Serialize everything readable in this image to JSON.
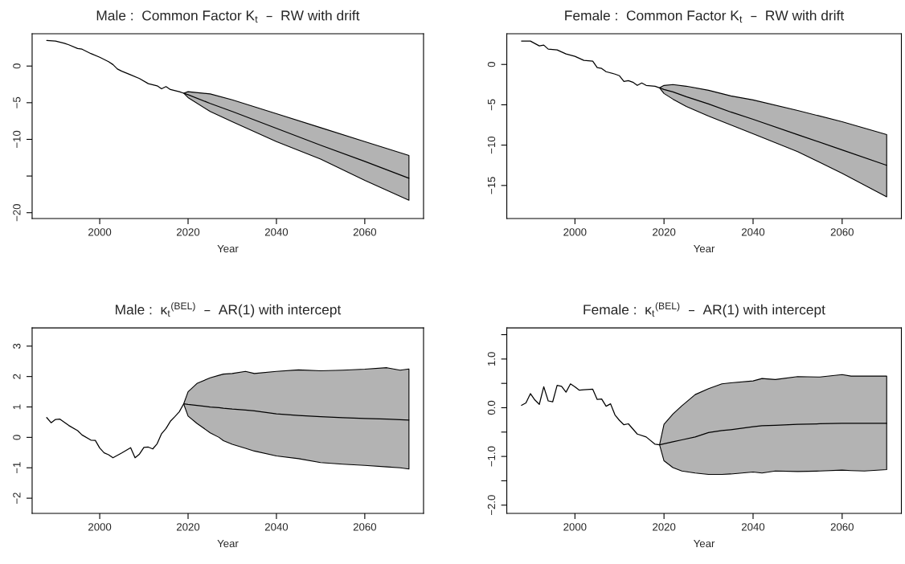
{
  "chart_data": [
    {
      "type": "line",
      "title": "Male :  Common Factor K$_{t}$  –  RW with drift",
      "xlabel": "Year",
      "xlim": [
        1984.7,
        2073.3
      ],
      "ylim": [
        -20.8,
        4.4
      ],
      "xticks": [
        2000,
        2020,
        2040,
        2060
      ],
      "yticks": [
        -20,
        {
          "value": -15,
          "label": null
        },
        -10,
        -5,
        0
      ],
      "series": [
        {
          "color": "#000000",
          "x": [
            1988,
            1990,
            1992,
            1993,
            1995,
            1996,
            1998,
            2000,
            2002,
            2003,
            2004,
            2005,
            2007,
            2009,
            2011,
            2013,
            2014,
            2015,
            2016,
            2018,
            2019,
            2020,
            2025,
            2030,
            2040,
            2050,
            2060,
            2070
          ],
          "values": [
            3.5,
            3.4,
            3.1,
            2.9,
            2.4,
            2.3,
            1.7,
            1.2,
            0.6,
            0.2,
            -0.4,
            -0.7,
            -1.2,
            -1.7,
            -2.4,
            -2.7,
            -3.1,
            -2.8,
            -3.2,
            -3.5,
            -3.7,
            -3.9,
            -5.1,
            -6.2,
            -8.5,
            -10.8,
            -13,
            -15.3
          ],
          "upper": [
            null,
            null,
            null,
            null,
            null,
            null,
            null,
            null,
            null,
            null,
            null,
            null,
            null,
            null,
            null,
            null,
            null,
            null,
            null,
            null,
            -3.7,
            -3.5,
            -3.8,
            -4.6,
            -6.5,
            -8.4,
            -10.3,
            -12.2
          ],
          "lower": [
            null,
            null,
            null,
            null,
            null,
            null,
            null,
            null,
            null,
            null,
            null,
            null,
            null,
            null,
            null,
            null,
            null,
            null,
            null,
            null,
            -3.7,
            -4.3,
            -6.2,
            -7.6,
            -10.3,
            -12.7,
            -15.6,
            -18.3
          ]
        }
      ]
    },
    {
      "type": "line",
      "title": "Female :  Common Factor K$_{t}$  –  RW with drift",
      "xlabel": "Year",
      "xlim": [
        1984.7,
        2073.3
      ],
      "ylim": [
        -19.1,
        3.8
      ],
      "xticks": [
        2000,
        2020,
        2040,
        2060
      ],
      "yticks": [
        -15,
        -10,
        -5,
        0
      ],
      "series": [
        {
          "color": "#000000",
          "x": [
            1988,
            1990,
            1992,
            1993,
            1994,
            1996,
            1998,
            2000,
            2002,
            2004,
            2005,
            2006,
            2007,
            2009,
            2010,
            2011,
            2012,
            2013,
            2014,
            2015,
            2016,
            2018,
            2019,
            2020,
            2022,
            2025,
            2030,
            2035,
            2040,
            2050,
            2060,
            2070
          ],
          "values": [
            2.9,
            2.9,
            2.3,
            2.4,
            1.9,
            1.8,
            1.3,
            1.0,
            0.5,
            0.4,
            -0.4,
            -0.5,
            -0.9,
            -1.2,
            -1.4,
            -2.1,
            -2.0,
            -2.2,
            -2.6,
            -2.3,
            -2.6,
            -2.7,
            -2.9,
            -3.1,
            -3.4,
            -4.0,
            -4.9,
            -5.9,
            -6.8,
            -8.7,
            -10.6,
            -12.5
          ],
          "upper": [
            null,
            null,
            null,
            null,
            null,
            null,
            null,
            null,
            null,
            null,
            null,
            null,
            null,
            null,
            null,
            null,
            null,
            null,
            null,
            null,
            null,
            null,
            -2.9,
            -2.6,
            -2.5,
            -2.7,
            -3.2,
            -3.9,
            -4.4,
            -5.7,
            -7.1,
            -8.7
          ],
          "lower": [
            null,
            null,
            null,
            null,
            null,
            null,
            null,
            null,
            null,
            null,
            null,
            null,
            null,
            null,
            null,
            null,
            null,
            null,
            null,
            null,
            null,
            null,
            -2.9,
            -3.6,
            -4.3,
            -5.2,
            -6.4,
            -7.5,
            -8.6,
            -10.8,
            -13.5,
            -16.4
          ]
        }
      ]
    },
    {
      "type": "line",
      "title": "Male :  κ$_{t}$$^{(BEL)}$  –  AR(1) with intercept",
      "xlabel": "Year",
      "xlim": [
        1984.7,
        2073.3
      ],
      "ylim": [
        -2.5,
        3.6
      ],
      "xticks": [
        2000,
        2020,
        2040,
        2060
      ],
      "yticks": [
        -2,
        -1,
        0,
        1,
        2,
        3
      ],
      "series": [
        {
          "color": "#000000",
          "x": [
            1988,
            1989,
            1990,
            1991,
            1993,
            1995,
            1996,
            1998,
            1999,
            2000,
            2001,
            2002,
            2003,
            2005,
            2007,
            2008,
            2009,
            2010,
            2011,
            2012,
            2013,
            2014,
            2015,
            2016,
            2017,
            2018,
            2019,
            2020,
            2022,
            2025,
            2027,
            2028,
            2030,
            2033,
            2035,
            2040,
            2045,
            2050,
            2055,
            2060,
            2065,
            2068,
            2070
          ],
          "values": [
            0.65,
            0.48,
            0.59,
            0.6,
            0.39,
            0.22,
            0.08,
            -0.09,
            -0.1,
            -0.35,
            -0.51,
            -0.57,
            -0.67,
            -0.51,
            -0.34,
            -0.67,
            -0.55,
            -0.33,
            -0.32,
            -0.38,
            -0.21,
            0.12,
            0.29,
            0.53,
            0.68,
            0.84,
            1.1,
            1.08,
            1.05,
            1.0,
            0.98,
            0.96,
            0.93,
            0.9,
            0.87,
            0.77,
            0.72,
            0.68,
            0.65,
            0.62,
            0.6,
            0.58,
            0.57
          ],
          "upper": [
            null,
            null,
            null,
            null,
            null,
            null,
            null,
            null,
            null,
            null,
            null,
            null,
            null,
            null,
            null,
            null,
            null,
            null,
            null,
            null,
            null,
            null,
            null,
            null,
            null,
            null,
            1.1,
            1.5,
            1.77,
            1.96,
            2.04,
            2.08,
            2.1,
            2.17,
            2.1,
            2.17,
            2.22,
            2.19,
            2.21,
            2.24,
            2.29,
            2.21,
            2.25
          ],
          "lower": [
            null,
            null,
            null,
            null,
            null,
            null,
            null,
            null,
            null,
            null,
            null,
            null,
            null,
            null,
            null,
            null,
            null,
            null,
            null,
            null,
            null,
            null,
            null,
            null,
            null,
            null,
            1.1,
            0.7,
            0.46,
            0.15,
            0,
            -0.11,
            -0.23,
            -0.36,
            -0.45,
            -0.61,
            -0.7,
            -0.83,
            -0.88,
            -0.92,
            -0.97,
            -1.0,
            -1.04
          ]
        }
      ]
    },
    {
      "type": "line",
      "title": "Female :  κ$_{t}$$^{(BEL)}$  –  AR(1) with intercept",
      "xlabel": "Year",
      "xlim": [
        1984.7,
        2073.3
      ],
      "ylim": [
        -2.17,
        1.64
      ],
      "xticks": [
        2000,
        2020,
        2040,
        2060
      ],
      "yticks": [
        {
          "value": -2.0,
          "label": "−2.0"
        },
        {
          "value": -1.5,
          "label": null
        },
        {
          "value": -1.0,
          "label": "−1.0"
        },
        {
          "value": -0.5,
          "label": null
        },
        {
          "value": 0.0,
          "label": "0.0"
        },
        {
          "value": 0.5,
          "label": null
        },
        {
          "value": 1.0,
          "label": "1.0"
        },
        {
          "value": 1.5,
          "label": null
        }
      ],
      "series": [
        {
          "color": "#000000",
          "x": [
            1988,
            1989,
            1990,
            1991,
            1992,
            1993,
            1994,
            1995,
            1996,
            1997,
            1998,
            1999,
            2000,
            2001,
            2002,
            2004,
            2005,
            2006,
            2007,
            2008,
            2009,
            2010,
            2011,
            2012,
            2014,
            2016,
            2018,
            2019,
            2020,
            2022,
            2024,
            2027,
            2030,
            2033,
            2035,
            2040,
            2042,
            2045,
            2050,
            2055,
            2060,
            2062,
            2065,
            2070
          ],
          "values": [
            0.05,
            0.1,
            0.29,
            0.16,
            0.07,
            0.43,
            0.14,
            0.12,
            0.46,
            0.44,
            0.32,
            0.49,
            0.43,
            0.36,
            0.37,
            0.38,
            0.17,
            0.18,
            0.03,
            0.08,
            -0.15,
            -0.26,
            -0.35,
            -0.33,
            -0.54,
            -0.6,
            -0.75,
            -0.76,
            -0.74,
            -0.7,
            -0.66,
            -0.6,
            -0.51,
            -0.47,
            -0.45,
            -0.39,
            -0.37,
            -0.36,
            -0.34,
            -0.33,
            -0.32,
            -0.32,
            -0.32,
            -0.32
          ],
          "upper": [
            null,
            null,
            null,
            null,
            null,
            null,
            null,
            null,
            null,
            null,
            null,
            null,
            null,
            null,
            null,
            null,
            null,
            null,
            null,
            null,
            null,
            null,
            null,
            null,
            null,
            null,
            null,
            -0.76,
            -0.34,
            -0.13,
            0.04,
            0.27,
            0.39,
            0.49,
            0.51,
            0.55,
            0.6,
            0.58,
            0.64,
            0.63,
            0.68,
            0.65,
            0.65,
            0.65
          ],
          "lower": [
            null,
            null,
            null,
            null,
            null,
            null,
            null,
            null,
            null,
            null,
            null,
            null,
            null,
            null,
            null,
            null,
            null,
            null,
            null,
            null,
            null,
            null,
            null,
            null,
            null,
            null,
            null,
            -0.76,
            -1.09,
            -1.23,
            -1.3,
            -1.34,
            -1.37,
            -1.37,
            -1.36,
            -1.32,
            -1.34,
            -1.3,
            -1.31,
            -1.3,
            -1.28,
            -1.29,
            -1.3,
            -1.27
          ]
        }
      ]
    }
  ]
}
